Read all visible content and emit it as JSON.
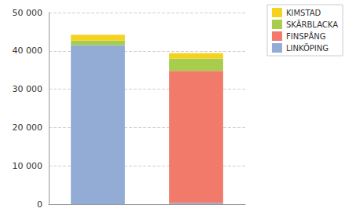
{
  "chart_data": {
    "type": "bar",
    "stacked": true,
    "categories": [
      null,
      null
    ],
    "series": [
      {
        "name": "LINKÖPING",
        "color": "#93acd6",
        "values": [
          41500,
          300
        ]
      },
      {
        "name": "FINSPÅNG",
        "color": "#f27a6a",
        "values": [
          0,
          34500
        ]
      },
      {
        "name": "SKÄRBLACKA",
        "color": "#a8cc4c",
        "values": [
          1200,
          3200
        ]
      },
      {
        "name": "KIMSTAD",
        "color": "#f5d21e",
        "values": [
          1500,
          1400
        ]
      }
    ],
    "ylim": [
      0,
      50000
    ],
    "yticks": [
      {
        "value": 0,
        "label": "0"
      },
      {
        "value": 10000,
        "label": "10 000"
      },
      {
        "value": 20000,
        "label": "20 000"
      },
      {
        "value": 30000,
        "label": "30 000"
      },
      {
        "value": 40000,
        "label": "40 000"
      },
      {
        "value": 50000,
        "label": "50 000"
      }
    ],
    "grid": true,
    "legend": "top-right",
    "tick_labels": "y"
  }
}
